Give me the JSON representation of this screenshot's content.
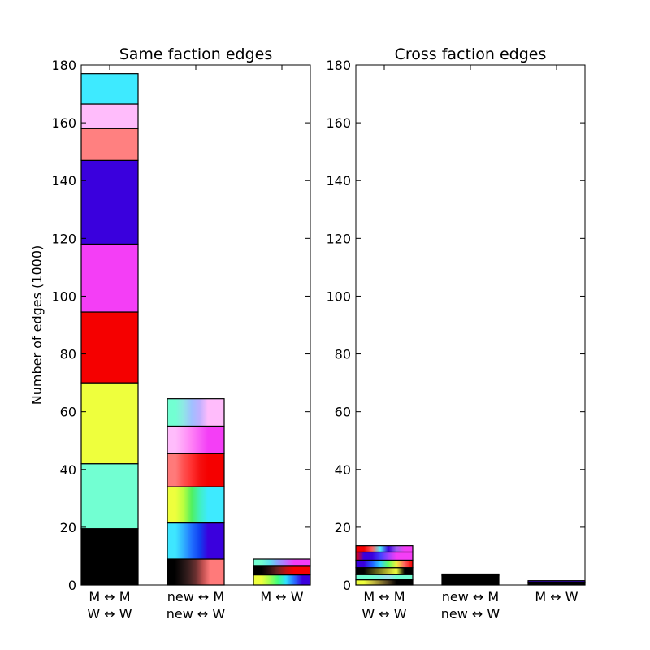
{
  "chart_data": [
    {
      "type": "bar",
      "stacked": true,
      "title": "Same faction edges",
      "ylabel": "Number of edges (1000)",
      "xlabel": "",
      "ylim": [
        0,
        180
      ],
      "yticks": [
        0,
        20,
        40,
        60,
        80,
        100,
        120,
        140,
        160,
        180
      ],
      "grid": false,
      "categories": [
        {
          "line1": "M ↔ M",
          "line2": "W ↔ W"
        },
        {
          "line1": "new ↔ M",
          "line2": "new ↔ W"
        },
        {
          "line1": "M ↔ W",
          "line2": ""
        }
      ],
      "bars": [
        {
          "segments": [
            {
              "value": 19.5,
              "colors": [
                "#000000"
              ]
            },
            {
              "value": 22.5,
              "colors": [
                "#72ffd2"
              ]
            },
            {
              "value": 28.0,
              "colors": [
                "#eeff3d"
              ]
            },
            {
              "value": 24.5,
              "colors": [
                "#f50000"
              ]
            },
            {
              "value": 23.5,
              "colors": [
                "#f43ef6"
              ]
            },
            {
              "value": 29.0,
              "colors": [
                "#3a00dd"
              ]
            },
            {
              "value": 11.0,
              "colors": [
                "#ff8080"
              ]
            },
            {
              "value": 8.5,
              "colors": [
                "#ffbcfb"
              ]
            },
            {
              "value": 10.5,
              "colors": [
                "#3eeaff"
              ]
            }
          ]
        },
        {
          "segments": [
            {
              "value": 9.0,
              "colors": [
                "#000000",
                "#000000",
                "#1a1010",
                "#3a2020",
                "#6a3030",
                "#c05050",
                "#ff7a7a",
                "#ff7a7a",
                "#ff7a7a"
              ]
            },
            {
              "value": 12.5,
              "colors": [
                "#3ee6ff",
                "#3ee6ff",
                "#30b0ff",
                "#2070ff",
                "#1040f0",
                "#3a00dd",
                "#3a00dd",
                "#3a00dd"
              ]
            },
            {
              "value": 12.5,
              "colors": [
                "#eeff3d",
                "#eeff3d",
                "#b8ff40",
                "#50f060",
                "#40f0c0",
                "#3eeaff",
                "#3eeaff",
                "#3eeaff"
              ]
            },
            {
              "value": 11.5,
              "colors": [
                "#ff7a7a",
                "#ff7a7a",
                "#ff5050",
                "#ff3030",
                "#f51010",
                "#f50000",
                "#f50000",
                "#f50000"
              ]
            },
            {
              "value": 9.5,
              "colors": [
                "#ffbcfb",
                "#ffbcfb",
                "#ffa0f8",
                "#ff80f6",
                "#f860f6",
                "#f43ef6",
                "#f43ef6",
                "#f43ef6"
              ]
            },
            {
              "value": 9.5,
              "colors": [
                "#72ffd2",
                "#72ffd2",
                "#90e6e6",
                "#a0c0ff",
                "#c0b0ff",
                "#ffbcfb",
                "#ffbcfb",
                "#ffbcfb"
              ]
            }
          ]
        },
        {
          "segments": [
            {
              "value": 3.5,
              "colors": [
                "#eeff3d",
                "#eeff3d",
                "#a0ff50",
                "#40ff80",
                "#30e0ff",
                "#2a70ff",
                "#3a00dd",
                "#3a00dd"
              ]
            },
            {
              "value": 3.0,
              "colors": [
                "#000000",
                "#000000",
                "#301010",
                "#702020",
                "#c01010",
                "#f50000",
                "#f50000",
                "#f50000"
              ]
            },
            {
              "value": 2.5,
              "colors": [
                "#72ffd2",
                "#72ffd2",
                "#60e0f0",
                "#90a0ff",
                "#c070ff",
                "#f43ef6",
                "#f43ef6",
                "#f43ef6"
              ]
            }
          ]
        }
      ]
    },
    {
      "type": "bar",
      "stacked": true,
      "title": "Cross faction edges",
      "ylabel": "",
      "xlabel": "",
      "ylim": [
        0,
        180
      ],
      "yticks": [
        0,
        20,
        40,
        60,
        80,
        100,
        120,
        140,
        160,
        180
      ],
      "grid": false,
      "categories": [
        {
          "line1": "M ↔ M",
          "line2": "W ↔ W"
        },
        {
          "line1": "new ↔ M",
          "line2": "new ↔ W"
        },
        {
          "line1": "M ↔ W",
          "line2": ""
        }
      ],
      "bars": [
        {
          "segments": [
            {
              "value": 1.8,
              "colors": [
                "#eeff3d",
                "#eeff3d",
                "#c8c040",
                "#908030",
                "#504020",
                "#000000",
                "#000000",
                "#000000"
              ]
            },
            {
              "value": 1.8,
              "colors": [
                "#72ffd2",
                "#72ffd2",
                "#72ffd2",
                "#80f0e0",
                "#a0e0f0",
                "#72ffd2",
                "#72ffd2",
                "#72ffd2"
              ]
            },
            {
              "value": 2.4,
              "colors": [
                "#000000",
                "#000000",
                "#404010",
                "#808020",
                "#c0c030",
                "#eeff3d",
                "#000000",
                "#000000"
              ]
            },
            {
              "value": 2.6,
              "colors": [
                "#3a00dd",
                "#3a00dd",
                "#2060ff",
                "#30d0ff",
                "#60ff60",
                "#f0f040",
                "#ff6060",
                "#f50000"
              ]
            },
            {
              "value": 2.8,
              "colors": [
                "#f50000",
                "#3a00dd",
                "#3a00dd",
                "#4040ff",
                "#a040ff",
                "#f43ef6",
                "#f43ef6",
                "#f43ef6"
              ]
            },
            {
              "value": 2.2,
              "colors": [
                "#f50000",
                "#f50000",
                "#ff6060",
                "#50f0ff",
                "#3a00dd",
                "#a060f0",
                "#f43ef6",
                "#f43ef6"
              ]
            }
          ]
        },
        {
          "segments": [
            {
              "value": 3.2,
              "colors": [
                "#000000"
              ]
            },
            {
              "value": 0.3,
              "colors": [
                "#3a00dd"
              ]
            },
            {
              "value": 0.3,
              "colors": [
                "#f50000"
              ]
            }
          ]
        },
        {
          "segments": [
            {
              "value": 1.0,
              "colors": [
                "#000000"
              ]
            },
            {
              "value": 0.5,
              "colors": [
                "#3a00dd"
              ]
            }
          ]
        }
      ]
    }
  ]
}
